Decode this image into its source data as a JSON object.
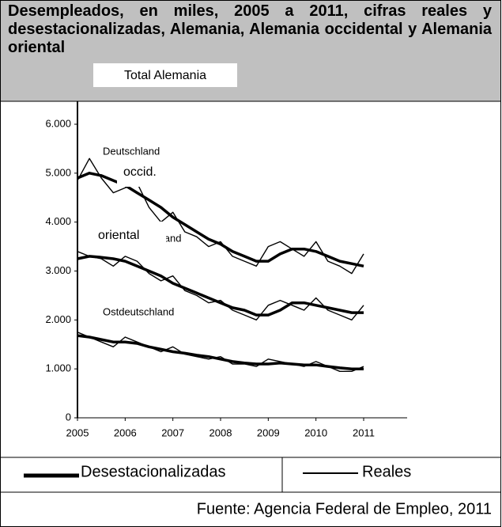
{
  "chart_data": {
    "type": "line",
    "title": "Desempleados, en miles, 2005 a 2011, cifras reales y desestacionalizadas, Alemania, Alemania occidental y Alemania oriental",
    "overlays": [
      "Total Alemania",
      "occid.",
      "oriental"
    ],
    "x": [
      2005,
      2005.25,
      2005.5,
      2005.75,
      2006,
      2006.25,
      2006.5,
      2006.75,
      2007,
      2007.25,
      2007.5,
      2007.75,
      2008,
      2008.25,
      2008.5,
      2008.75,
      2009,
      2009.25,
      2009.5,
      2009.75,
      2010,
      2010.25,
      2010.5,
      2010.75,
      2011
    ],
    "groups": [
      {
        "label": "Deutschland",
        "deseasonalized": [
          4900,
          5000,
          4950,
          4850,
          4750,
          4600,
          4450,
          4300,
          4100,
          3950,
          3800,
          3650,
          3550,
          3400,
          3300,
          3200,
          3200,
          3350,
          3450,
          3450,
          3400,
          3300,
          3200,
          3150,
          3100
        ],
        "actual": [
          4850,
          5300,
          4900,
          4600,
          4700,
          4800,
          4300,
          4000,
          4200,
          3800,
          3700,
          3500,
          3600,
          3300,
          3200,
          3100,
          3500,
          3600,
          3450,
          3300,
          3600,
          3200,
          3100,
          2950,
          3350
        ]
      },
      {
        "label": "Westdeutschland",
        "deseasonalized": [
          3250,
          3300,
          3280,
          3250,
          3200,
          3100,
          3000,
          2900,
          2750,
          2650,
          2550,
          2450,
          2350,
          2250,
          2200,
          2100,
          2100,
          2200,
          2350,
          2350,
          2300,
          2250,
          2200,
          2150,
          2150
        ],
        "actual": [
          3400,
          3300,
          3250,
          3100,
          3300,
          3200,
          2950,
          2800,
          2900,
          2600,
          2500,
          2350,
          2400,
          2200,
          2100,
          2000,
          2300,
          2400,
          2300,
          2200,
          2450,
          2200,
          2100,
          2000,
          2300
        ]
      },
      {
        "label": "Ostdeutschland",
        "deseasonalized": [
          1680,
          1650,
          1600,
          1550,
          1550,
          1520,
          1450,
          1400,
          1350,
          1320,
          1280,
          1250,
          1200,
          1150,
          1120,
          1100,
          1100,
          1120,
          1100,
          1080,
          1080,
          1050,
          1020,
          1000,
          1000
        ],
        "actual": [
          1750,
          1650,
          1550,
          1450,
          1650,
          1550,
          1450,
          1350,
          1450,
          1300,
          1250,
          1200,
          1250,
          1100,
          1100,
          1050,
          1200,
          1150,
          1100,
          1050,
          1150,
          1050,
          950,
          950,
          1050
        ]
      }
    ],
    "legend": [
      "Desestacionalizadas",
      "Reales"
    ],
    "color": "#000000",
    "xlim": [
      2005,
      2011
    ],
    "xticks": [
      2005,
      2006,
      2007,
      2008,
      2009,
      2010,
      2011
    ],
    "ylim": [
      0,
      6000
    ],
    "yticks": [
      0,
      {
        "value": 1000,
        "label": "1.000"
      },
      {
        "value": 2000,
        "label": "2.000"
      },
      {
        "value": 3000,
        "label": "3.000"
      },
      {
        "value": 4000,
        "label": "4.000"
      },
      {
        "value": 5000,
        "label": "5.000"
      },
      {
        "value": 6000,
        "label": "6.000"
      }
    ],
    "source": "Fuente: Agencia Federal de Empleo, 2011"
  }
}
